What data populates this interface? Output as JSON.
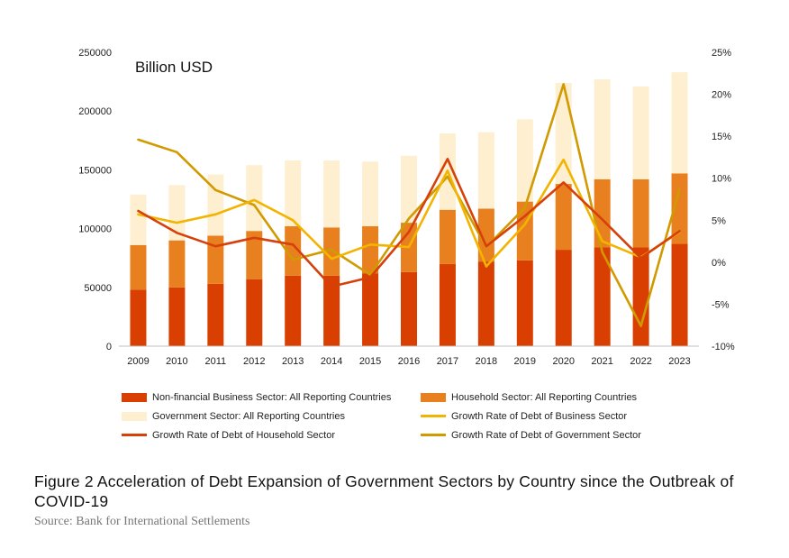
{
  "chart_data": {
    "type": "bar",
    "stacked": true,
    "unit_label": "Billion USD",
    "categories": [
      "2009",
      "2010",
      "2011",
      "2012",
      "2013",
      "2014",
      "2015",
      "2016",
      "2017",
      "2018",
      "2019",
      "2020",
      "2021",
      "2022",
      "2023"
    ],
    "y_left": {
      "min": 0,
      "max": 250000,
      "ticks": [
        "0",
        "50000",
        "100000",
        "150000",
        "200000",
        "250000"
      ]
    },
    "y_right": {
      "min": -10,
      "max": 25,
      "ticks": [
        "-10%",
        "-5%",
        "0%",
        "5%",
        "10%",
        "15%",
        "20%",
        "25%"
      ]
    },
    "series": [
      {
        "name": "Non-financial Business Sector: All Reporting Countries",
        "kind": "bar",
        "color": "#d93f00",
        "values": [
          48000,
          50000,
          53000,
          57000,
          60000,
          60000,
          62000,
          63000,
          70000,
          72000,
          73000,
          82000,
          84000,
          84000,
          87000
        ]
      },
      {
        "name": "Household Sector: All Reporting Countries",
        "kind": "bar",
        "color": "#e8801f",
        "values": [
          38000,
          40000,
          41000,
          41000,
          42000,
          41000,
          40000,
          42000,
          46000,
          45000,
          50000,
          56000,
          58000,
          58000,
          60000
        ]
      },
      {
        "name": "Government Sector: All Reporting Countries",
        "kind": "bar",
        "color": "#fdefd0",
        "values": [
          43000,
          47000,
          52000,
          56000,
          56000,
          57000,
          55000,
          57000,
          65000,
          65000,
          70000,
          86000,
          85000,
          79000,
          86000
        ]
      },
      {
        "name": "Growth Rate of Debt of Business Sector",
        "kind": "line",
        "axis": "right",
        "color": "#f2b400",
        "values": [
          5.7,
          4.7,
          5.7,
          7.4,
          5.0,
          0.4,
          2.1,
          1.8,
          10.9,
          -0.5,
          4.5,
          12.2,
          2.5,
          0.6,
          3.6
        ]
      },
      {
        "name": "Growth Rate of Debt of Household Sector",
        "kind": "line",
        "axis": "right",
        "color": "#d6400a",
        "values": [
          6.1,
          3.5,
          1.9,
          2.9,
          2.1,
          -2.9,
          -1.8,
          3.6,
          12.3,
          1.9,
          5.5,
          9.5,
          5.1,
          0.5,
          3.7
        ]
      },
      {
        "name": "Growth Rate of Debt of Government Sector",
        "kind": "line",
        "axis": "right",
        "color": "#d09a00",
        "values": [
          14.6,
          13.1,
          8.6,
          6.8,
          0.3,
          1.5,
          -1.5,
          5.2,
          10.2,
          1.8,
          6.5,
          21.2,
          1.2,
          -7.6,
          8.7
        ]
      }
    ]
  },
  "caption": "Figure 2 Acceleration of Debt Expansion of Government Sectors by Country since the Outbreak of COVID-19",
  "source": "Source: Bank for International Settlements"
}
